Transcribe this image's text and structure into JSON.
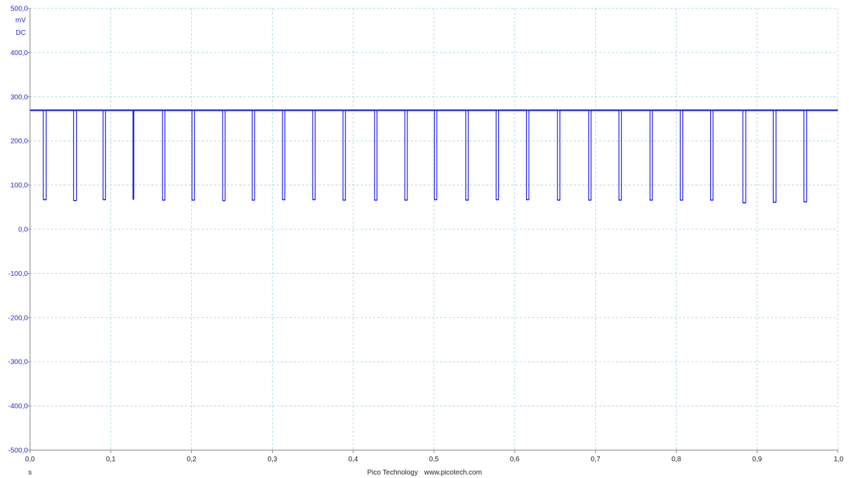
{
  "chart_data": {
    "type": "line",
    "title": "",
    "ylabel_unit": "mV",
    "coupling": "DC",
    "xlabel_unit": "s",
    "xlim": [
      0.0,
      1.0
    ],
    "ylim": [
      -500.0,
      500.0
    ],
    "grid": true,
    "y_ticks": [
      "500,0",
      "400,0",
      "300,0",
      "200,0",
      "100,0",
      "0,0",
      "-100,0",
      "-200,0",
      "-300,0",
      "-400,0",
      "-500,0"
    ],
    "y_tick_values": [
      500,
      400,
      300,
      200,
      100,
      0,
      -100,
      -200,
      -300,
      -400,
      -500
    ],
    "x_ticks": [
      "0,0",
      "0,1",
      "0,2",
      "0,3",
      "0,4",
      "0,5",
      "0,6",
      "0,7",
      "0,8",
      "0,9",
      "1,0"
    ],
    "x_tick_values": [
      0.0,
      0.1,
      0.2,
      0.3,
      0.4,
      0.5,
      0.6,
      0.7,
      0.8,
      0.9,
      1.0
    ],
    "series": [
      {
        "color": "#1f1fe0",
        "high_level": 270,
        "pulses": [
          {
            "start": 0.0165,
            "width": 0.0035,
            "low": 67
          },
          {
            "start": 0.054,
            "width": 0.0035,
            "low": 65
          },
          {
            "start": 0.0905,
            "width": 0.003,
            "low": 67
          },
          {
            "start": 0.1275,
            "width": 0.001,
            "low": 68
          },
          {
            "start": 0.164,
            "width": 0.003,
            "low": 66
          },
          {
            "start": 0.2005,
            "width": 0.003,
            "low": 66
          },
          {
            "start": 0.2385,
            "width": 0.003,
            "low": 65
          },
          {
            "start": 0.275,
            "width": 0.003,
            "low": 66
          },
          {
            "start": 0.3125,
            "width": 0.003,
            "low": 67
          },
          {
            "start": 0.35,
            "width": 0.003,
            "low": 67
          },
          {
            "start": 0.3875,
            "width": 0.003,
            "low": 66
          },
          {
            "start": 0.4265,
            "width": 0.003,
            "low": 66
          },
          {
            "start": 0.464,
            "width": 0.003,
            "low": 66
          },
          {
            "start": 0.5005,
            "width": 0.003,
            "low": 67
          },
          {
            "start": 0.5395,
            "width": 0.003,
            "low": 66
          },
          {
            "start": 0.577,
            "width": 0.003,
            "low": 67
          },
          {
            "start": 0.6145,
            "width": 0.003,
            "low": 67
          },
          {
            "start": 0.653,
            "width": 0.003,
            "low": 66
          },
          {
            "start": 0.6915,
            "width": 0.003,
            "low": 66
          },
          {
            "start": 0.729,
            "width": 0.003,
            "low": 66
          },
          {
            "start": 0.7675,
            "width": 0.003,
            "low": 66
          },
          {
            "start": 0.805,
            "width": 0.003,
            "low": 66
          },
          {
            "start": 0.8425,
            "width": 0.003,
            "low": 66
          },
          {
            "start": 0.8825,
            "width": 0.0035,
            "low": 60
          },
          {
            "start": 0.92,
            "width": 0.0035,
            "low": 61
          },
          {
            "start": 0.958,
            "width": 0.0035,
            "low": 62
          }
        ]
      }
    ]
  },
  "footer": {
    "brand": "Pico Technology",
    "url": "www.picotech.com"
  },
  "colors": {
    "trace": "#1f1fe0",
    "grid": "#a8d8e8",
    "axis": "#808080",
    "y_label": "#2a2ad8"
  }
}
